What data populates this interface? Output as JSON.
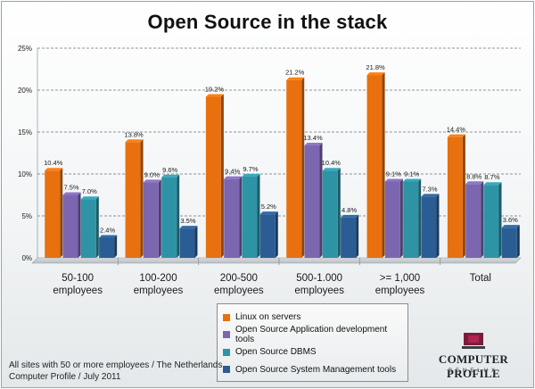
{
  "chart_data": {
    "type": "bar",
    "title": "Open Source in the stack",
    "categories": [
      [
        "50-100",
        "employees"
      ],
      [
        "100-200",
        "employees"
      ],
      [
        "200-500",
        "employees"
      ],
      [
        "500-1.000",
        "employees"
      ],
      [
        ">= 1,000",
        "employees"
      ],
      [
        "Total"
      ]
    ],
    "series": [
      {
        "name": "Linux on servers",
        "color": "#e8700f",
        "values": [
          10.4,
          13.8,
          19.2,
          21.2,
          21.8,
          14.4
        ],
        "labels": [
          "10.4%",
          "13.8%",
          "19.2%",
          "21.2%",
          "21.8%",
          "14.4%"
        ]
      },
      {
        "name": "Open Source Application development tools",
        "color": "#7c66b0",
        "values": [
          7.5,
          9.0,
          9.4,
          13.4,
          9.1,
          8.8
        ],
        "labels": [
          "7.5%",
          "9.0%",
          "9.4%",
          "13.4%",
          "9.1%",
          "8.8%"
        ]
      },
      {
        "name": "Open Source DBMS",
        "color": "#2f93a6",
        "values": [
          7.0,
          9.6,
          9.7,
          10.4,
          9.1,
          8.7
        ],
        "labels": [
          "7.0%",
          "9.6%",
          "9.7%",
          "10.4%",
          "9.1%",
          "8.7%"
        ]
      },
      {
        "name": "Open Source System Management tools",
        "color": "#2b5d95",
        "values": [
          2.4,
          3.5,
          5.2,
          4.8,
          7.3,
          3.6
        ],
        "labels": [
          "2.4%",
          "3.5%",
          "5.2%",
          "4.8%",
          "7.3%",
          "3.6%"
        ]
      }
    ],
    "y_ticks": [
      {
        "value": 0,
        "label": "0%"
      },
      {
        "value": 5,
        "label": "5%"
      },
      {
        "value": 10,
        "label": "10%"
      },
      {
        "value": 15,
        "label": "15%"
      },
      {
        "value": 20,
        "label": "20%"
      },
      {
        "value": 25,
        "label": "25%"
      }
    ],
    "ylim": [
      0,
      25
    ],
    "grid": true,
    "legend_position": "bottom-center"
  },
  "footnote": {
    "line1": "All sites with 50 or more employees / The Netherlands",
    "line2": "Computer Profile / July 2011"
  },
  "logo": {
    "name": "COMPUTER PROFILE",
    "sub": "BENELUX"
  }
}
